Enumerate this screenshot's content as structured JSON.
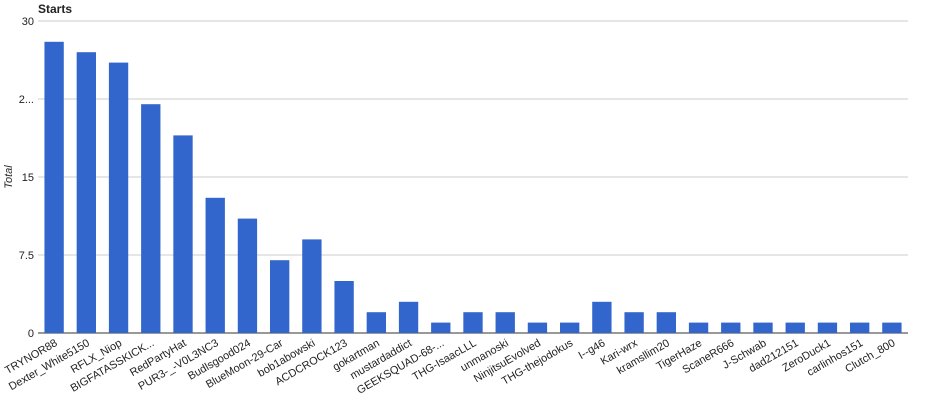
{
  "chart_data": {
    "type": "bar",
    "title": "Starts",
    "y_label": "Total",
    "categories": [
      "TRYNOR88",
      "Dexter_White5150",
      "RFLX_Niop",
      "BIGFATASSKICK...",
      "RedPartyHat",
      "PUR3-_-V0L3NC3",
      "Budlsgood024",
      "BlueMoon-29-Car",
      "bob1abowski",
      "ACDCROCK123",
      "gokartman",
      "mustardaddict",
      "GEEKSQUAD-68-...",
      "THG-IsaacLLL",
      "unmanoski",
      "NinjitsuEvolved",
      "THG-thejodokus",
      "I--g46",
      "Kari-wrx",
      "kramsllim20",
      "TigerHaze",
      "ScaneR666",
      "J-Schwab",
      "dad212151",
      "ZeroDuck1",
      "carlinhos151",
      "Clutch_800"
    ],
    "values": [
      28,
      27,
      26,
      22,
      19,
      13,
      11,
      7,
      9,
      5,
      2,
      3,
      1,
      2,
      2,
      1,
      1,
      3,
      2,
      2,
      1,
      1,
      1,
      1,
      1,
      1,
      1
    ],
    "color": "#3366cc",
    "ylim": [
      0,
      30
    ],
    "yticks": [
      0,
      7.5,
      15,
      {
        "value": 22.5,
        "label": "2..."
      },
      30
    ],
    "grid": true
  }
}
